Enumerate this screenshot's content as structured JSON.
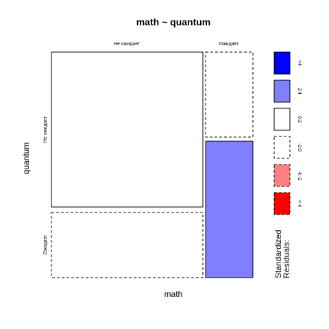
{
  "chart_data": {
    "type": "mosaic",
    "title": "math ~ quantum",
    "xlabel": "math",
    "ylabel": "quantum",
    "x_categories": [
      "Не ожидает",
      "Ожидает"
    ],
    "y_categories": [
      "Не ожидает",
      "Ожидает"
    ],
    "cells": [
      {
        "math": "Не ожидает",
        "quantum": "Не ожидает",
        "residual_band": "0:2",
        "fill": "#ffffff",
        "border": "solid"
      },
      {
        "math": "Не ожидает",
        "quantum": "Ожидает",
        "residual_band": "-2:0",
        "fill": "#ffffff",
        "border": "dashed"
      },
      {
        "math": "Ожидает",
        "quantum": "Не ожидает",
        "residual_band": "-2:0",
        "fill": "#ffffff",
        "border": "dashed"
      },
      {
        "math": "Ожидает",
        "quantum": "Ожидает",
        "residual_band": "2:4",
        "fill": "#8080ff",
        "border": "solid"
      }
    ],
    "legend": {
      "title": "Standardized Residuals:",
      "items": [
        {
          "label": ">4",
          "fill": "#0000ff",
          "border": "solid"
        },
        {
          "label": "2:4",
          "fill": "#8080ff",
          "border": "solid"
        },
        {
          "label": "0:2",
          "fill": "#ffffff",
          "border": "solid"
        },
        {
          "label": "-2:0",
          "fill": "#ffffff",
          "border": "dashed"
        },
        {
          "label": "-4:-2",
          "fill": "#ff8080",
          "border": "dashed"
        },
        {
          "label": "<-4",
          "fill": "#ff0000",
          "border": "dashed"
        }
      ]
    }
  }
}
